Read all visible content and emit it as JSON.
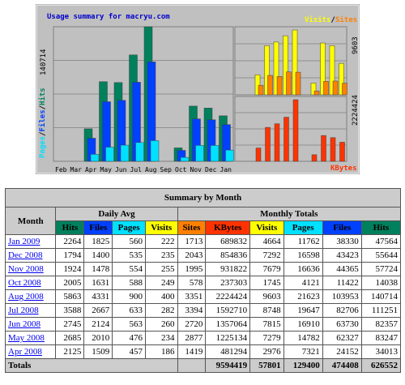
{
  "graph": {
    "title": "Usage summary for macryu.com",
    "legend_visits": "Visits",
    "legend_sep": "/",
    "legend_sites": "Sites",
    "legend_kbytes": "KBytes",
    "left_label_pages": "Pages",
    "left_label_files": "Files",
    "left_label_hits": "Hits",
    "left_max": "140714",
    "right_top_max": "9603",
    "right_bottom_max": "2224424"
  },
  "chart_data": {
    "type": "bar",
    "categories": [
      "Feb",
      "Mar",
      "Apr",
      "May",
      "Jun",
      "Jul",
      "Aug",
      "Sep",
      "Oct",
      "Nov",
      "Dec",
      "Jan"
    ],
    "series": [
      {
        "name": "Hits",
        "values": [
          0,
          0,
          34013,
          83247,
          82357,
          111251,
          140714,
          0,
          14038,
          57724,
          55644,
          47564
        ]
      },
      {
        "name": "Files",
        "values": [
          0,
          0,
          24152,
          62327,
          63730,
          82706,
          103953,
          0,
          11422,
          44365,
          43423,
          38330
        ]
      },
      {
        "name": "Pages",
        "values": [
          0,
          0,
          7321,
          14782,
          16910,
          19647,
          21623,
          0,
          4121,
          16636,
          16598,
          11762
        ]
      },
      {
        "name": "Visits",
        "values": [
          0,
          0,
          2976,
          7279,
          7815,
          8748,
          9603,
          0,
          1745,
          7679,
          7292,
          4664
        ]
      },
      {
        "name": "Sites",
        "values": [
          0,
          0,
          1419,
          2877,
          2720,
          3394,
          3351,
          0,
          578,
          1995,
          2043,
          1713
        ]
      },
      {
        "name": "KBytes",
        "values": [
          0,
          0,
          481294,
          1225134,
          1357064,
          1592710,
          2224424,
          0,
          237303,
          931822,
          854836,
          689832
        ]
      }
    ],
    "ylim_hits": [
      0,
      140714
    ],
    "ylim_visits": [
      0,
      9603
    ],
    "ylim_kbytes": [
      0,
      2224424
    ],
    "colors": {
      "hits": "#00805c",
      "files": "#0040ff",
      "pages": "#00e0ff",
      "visits": "#ffff00",
      "sites": "#ff8000",
      "kbytes": "#ff3300"
    }
  },
  "summary": {
    "title": "Summary by Month",
    "month_header": "Month",
    "daily_avg": "Daily Avg",
    "monthly_totals": "Monthly Totals",
    "cols_daily": [
      "Hits",
      "Files",
      "Pages",
      "Visits"
    ],
    "cols_monthly": [
      "Sites",
      "KBytes",
      "Visits",
      "Pages",
      "Files",
      "Hits"
    ],
    "rows": [
      {
        "month": "Jan 2009",
        "cells": [
          "2264",
          "1825",
          "560",
          "222",
          "1713",
          "689832",
          "4664",
          "11762",
          "38330",
          "47564"
        ]
      },
      {
        "month": "Dec 2008",
        "cells": [
          "1794",
          "1400",
          "535",
          "235",
          "2043",
          "854836",
          "7292",
          "16598",
          "43423",
          "55644"
        ]
      },
      {
        "month": "Nov 2008",
        "cells": [
          "1924",
          "1478",
          "554",
          "255",
          "1995",
          "931822",
          "7679",
          "16636",
          "44365",
          "57724"
        ]
      },
      {
        "month": "Oct 2008",
        "cells": [
          "2005",
          "1631",
          "588",
          "249",
          "578",
          "237303",
          "1745",
          "4121",
          "11422",
          "14038"
        ]
      },
      {
        "month": "Aug 2008",
        "cells": [
          "5863",
          "4331",
          "900",
          "400",
          "3351",
          "2224424",
          "9603",
          "21623",
          "103953",
          "140714"
        ]
      },
      {
        "month": "Jul 2008",
        "cells": [
          "3588",
          "2667",
          "633",
          "282",
          "3394",
          "1592710",
          "8748",
          "19647",
          "82706",
          "111251"
        ]
      },
      {
        "month": "Jun 2008",
        "cells": [
          "2745",
          "2124",
          "563",
          "260",
          "2720",
          "1357064",
          "7815",
          "16910",
          "63730",
          "82357"
        ]
      },
      {
        "month": "May 2008",
        "cells": [
          "2685",
          "2010",
          "476",
          "234",
          "2877",
          "1225134",
          "7279",
          "14782",
          "62327",
          "83247"
        ]
      },
      {
        "month": "Apr 2008",
        "cells": [
          "2125",
          "1509",
          "457",
          "186",
          "1419",
          "481294",
          "2976",
          "7321",
          "24152",
          "34013"
        ]
      }
    ],
    "totals_label": "Totals",
    "totals": [
      "9594419",
      "57801",
      "129400",
      "474408",
      "626552"
    ]
  }
}
